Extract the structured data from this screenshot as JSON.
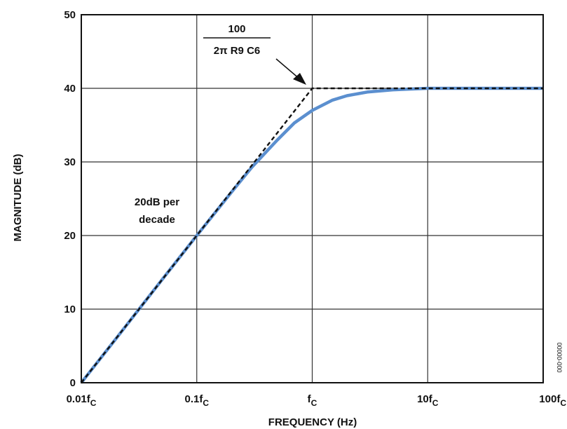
{
  "chart_data": {
    "type": "line",
    "xlabel": "FREQUENCY (Hz)",
    "ylabel": "MAGNITUDE (dB)",
    "x_scale": "log",
    "grid": true,
    "x_ticks": [
      {
        "value": 0.01,
        "main": "0.01f",
        "sub": "C"
      },
      {
        "value": 0.1,
        "main": "0.1f",
        "sub": "C"
      },
      {
        "value": 1,
        "main": "f",
        "sub": "C"
      },
      {
        "value": 10,
        "main": "10f",
        "sub": "C"
      },
      {
        "value": 100,
        "main": "100f",
        "sub": "C"
      }
    ],
    "xlim": [
      0.01,
      100
    ],
    "y_ticks": [
      "0",
      "10",
      "20",
      "30",
      "40",
      "50"
    ],
    "ylim": [
      0,
      50
    ],
    "series": [
      {
        "style": "solid",
        "color": "#5b8fcf",
        "x": [
          0.01,
          0.02,
          0.05,
          0.1,
          0.2,
          0.3,
          0.5,
          0.7,
          1,
          1.5,
          2,
          3,
          5,
          10,
          30,
          100
        ],
        "y": [
          0,
          6.0,
          14.0,
          20.0,
          25.9,
          29.3,
          33.0,
          35.3,
          37.0,
          38.4,
          39.0,
          39.5,
          39.8,
          40,
          40,
          40
        ]
      },
      {
        "style": "dashed",
        "color": "#111111",
        "x": [
          0.01,
          1,
          100
        ],
        "y": [
          0,
          40,
          40
        ]
      }
    ],
    "annotations": {
      "slope_line1": "20dB per",
      "slope_line2": "decade",
      "formula_numerator": "100",
      "formula_denominator": "2π R9 C6"
    },
    "figure_code": "00000-000"
  }
}
